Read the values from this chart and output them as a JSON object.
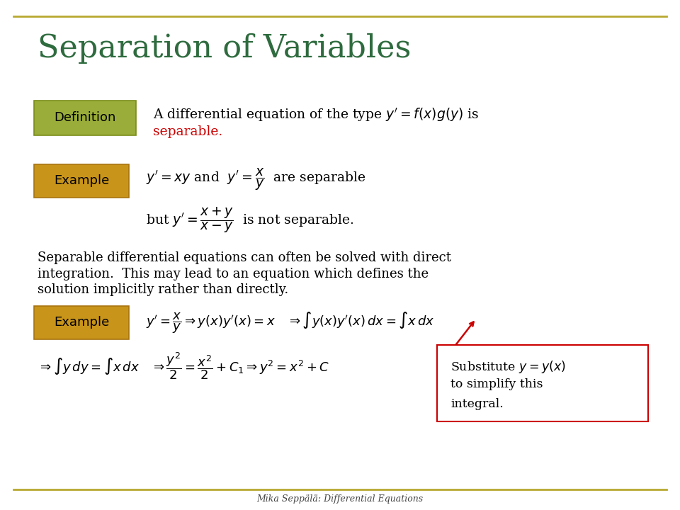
{
  "title": "Separation of Variables",
  "title_color": "#2E6B3E",
  "title_fontsize": 32,
  "background_color": "#FFFFFF",
  "border_color": "#B8A830",
  "footer": "Mika Seppälä: Differential Equations",
  "definition_box_color": "#9AAD3A",
  "definition_box_edge": "#7A8D1A",
  "definition_label": "Definition",
  "example_box_color": "#C8941A",
  "example_box_edge": "#A87410",
  "example_label": "Example",
  "separable_color": "#CC0000",
  "annotation_color": "#CC0000",
  "text_color": "#000000"
}
